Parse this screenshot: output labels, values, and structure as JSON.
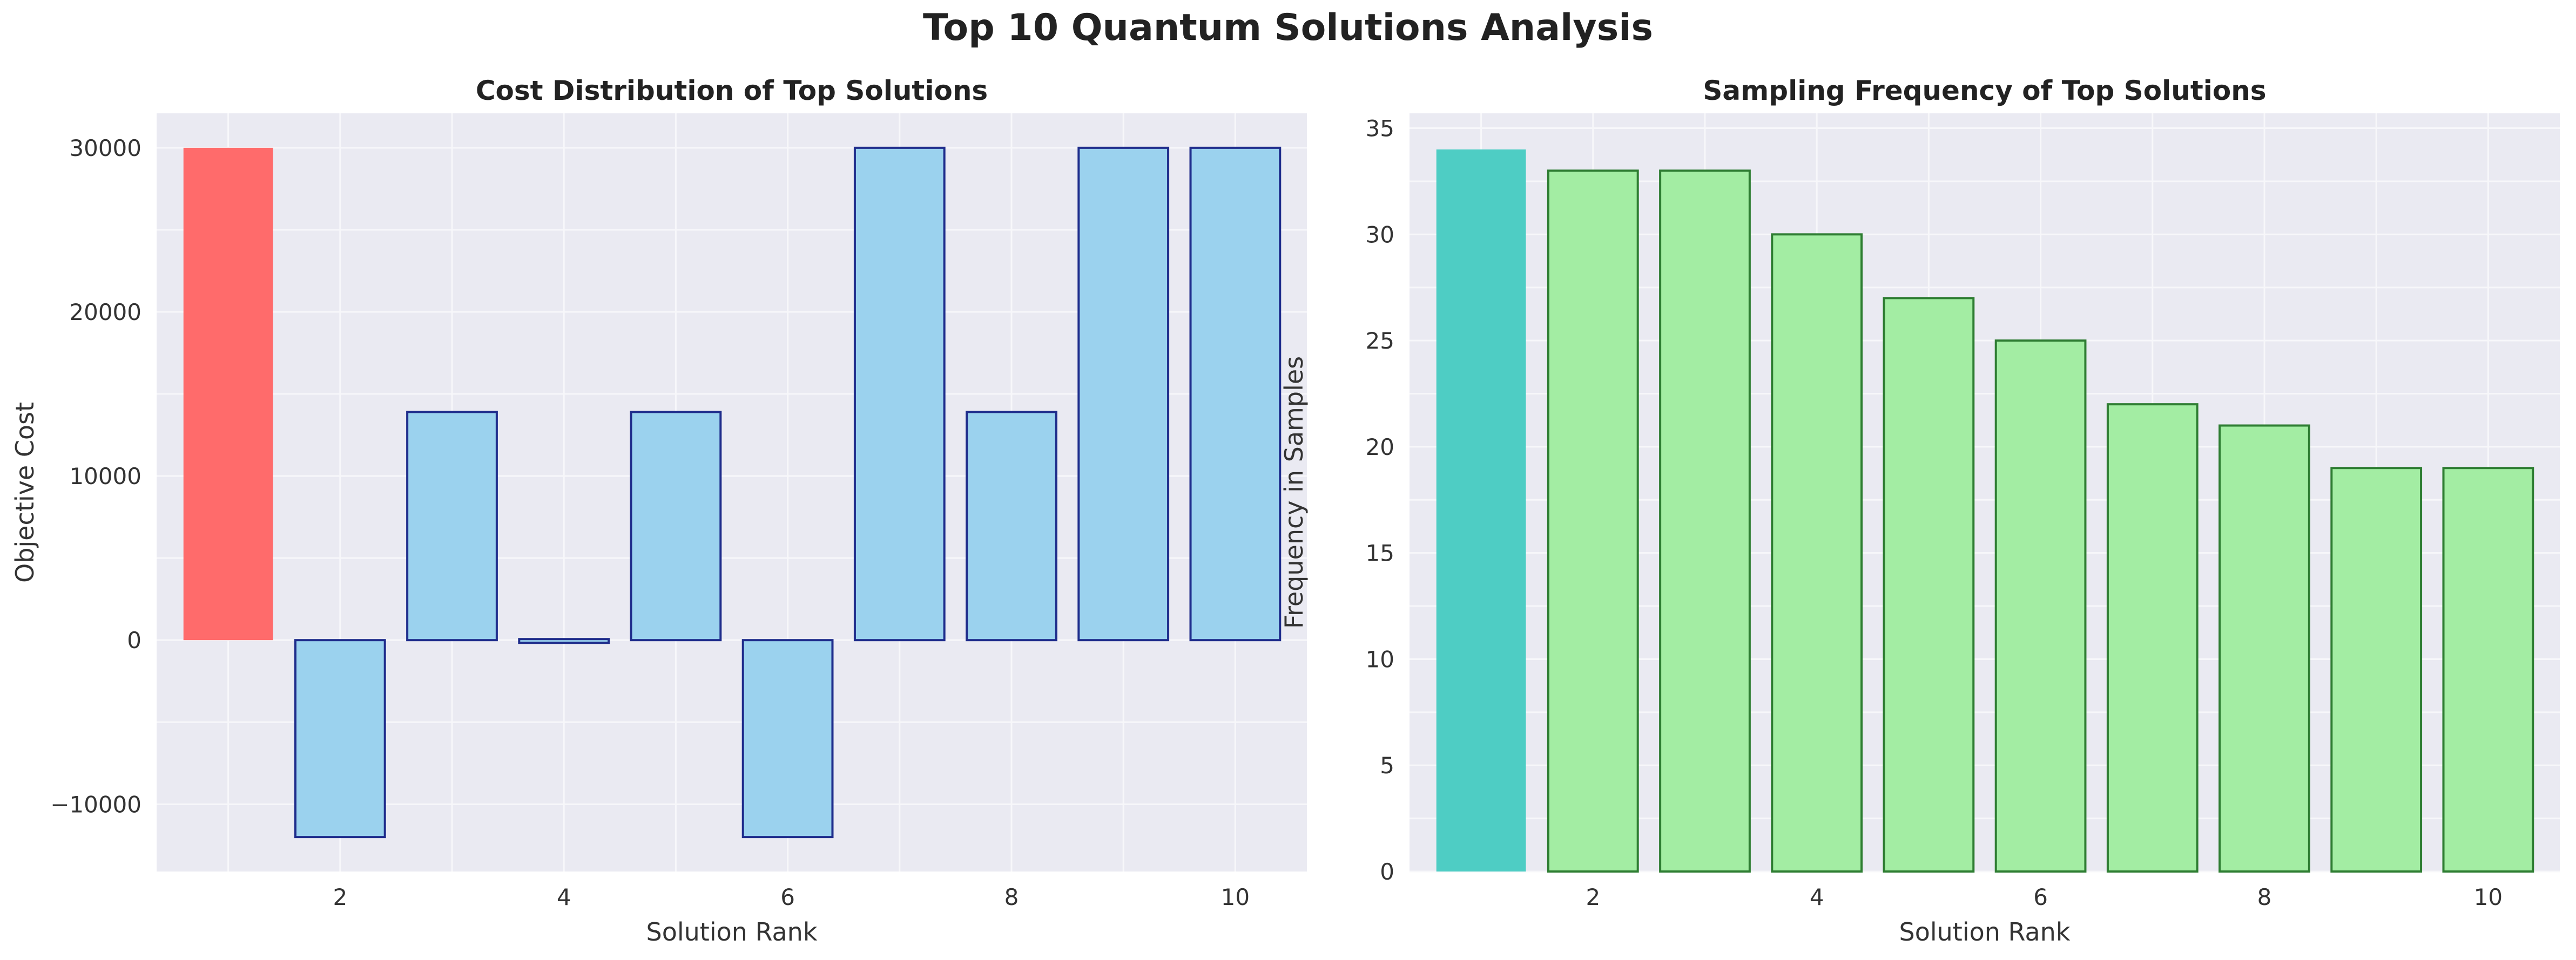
{
  "title": "Top 10 Quantum Solutions Analysis",
  "colors": {
    "plot_bg": "#EAEAF2",
    "grid": "#F7F7FA",
    "left_highlight": "#FF6B6B",
    "left_bar": "#9BD2EE",
    "left_edge": "#1F2D8C",
    "right_highlight": "#4ECDC4",
    "right_bar": "#A3EDA3",
    "right_edge": "#2E7D32"
  },
  "chart_data": [
    {
      "type": "bar",
      "title": "Cost Distribution of Top Solutions",
      "xlabel": "Solution Rank",
      "ylabel": "Objective Cost",
      "categories": [
        1,
        2,
        3,
        4,
        5,
        6,
        7,
        8,
        9,
        10
      ],
      "values": [
        30000,
        -12000,
        13900,
        -100,
        13900,
        -12000,
        30000,
        13900,
        30000,
        30000
      ],
      "highlight_index": 0,
      "xticks": [
        2,
        4,
        6,
        8,
        10
      ],
      "yticks": [
        -10000,
        0,
        10000,
        20000,
        30000
      ],
      "ytick_labels": [
        "−10000",
        "0",
        "10000",
        "20000",
        "30000"
      ],
      "xlim": [
        0.36,
        10.64
      ],
      "ylim": [
        -14100,
        32100
      ],
      "grid": true
    },
    {
      "type": "bar",
      "title": "Sampling Frequency of Top Solutions",
      "xlabel": "Solution Rank",
      "ylabel": "Frequency in Samples",
      "categories": [
        1,
        2,
        3,
        4,
        5,
        6,
        7,
        8,
        9,
        10
      ],
      "values": [
        34,
        33,
        33,
        30,
        27,
        25,
        22,
        21,
        19,
        19
      ],
      "highlight_index": 0,
      "xticks": [
        2,
        4,
        6,
        8,
        10
      ],
      "yticks": [
        0,
        5,
        10,
        15,
        20,
        25,
        30,
        35
      ],
      "ytick_labels": [
        "0",
        "5",
        "10",
        "15",
        "20",
        "25",
        "30",
        "35"
      ],
      "xlim": [
        0.36,
        10.64
      ],
      "ylim": [
        0,
        35.7
      ],
      "grid": true
    }
  ]
}
